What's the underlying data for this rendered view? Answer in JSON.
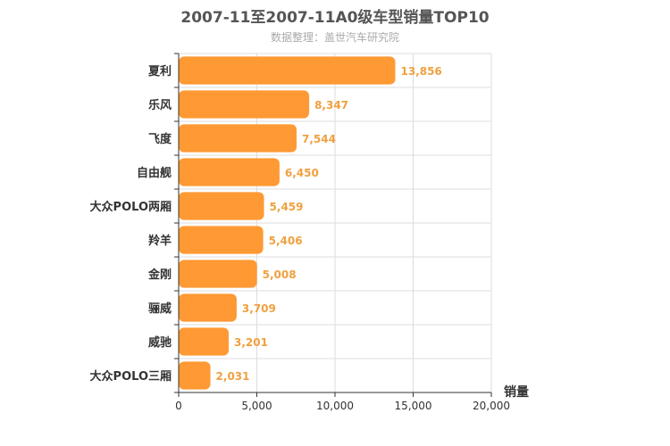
{
  "chart_data": {
    "type": "bar",
    "orientation": "horizontal",
    "title": "2007-11至2007-11A0级车型销量TOP10",
    "subtitle": "数据整理：盖世汽车研究院",
    "xlabel": "销量",
    "ylabel": "",
    "categories": [
      "夏利",
      "乐风",
      "飞度",
      "自由舰",
      "大众POLO两厢",
      "羚羊",
      "金刚",
      "骊威",
      "威驰",
      "大众POLO三厢"
    ],
    "values": [
      13856,
      8347,
      7544,
      6450,
      5459,
      5406,
      5008,
      3709,
      3201,
      2031
    ],
    "value_labels": [
      "13,856",
      "8,347",
      "7,544",
      "6,450",
      "5,459",
      "5,406",
      "5,008",
      "3,709",
      "3,201",
      "2,031"
    ],
    "xlim": [
      0,
      20000
    ],
    "xticks": [
      0,
      5000,
      10000,
      15000,
      20000
    ],
    "xtick_labels": [
      "0",
      "5,000",
      "10,000",
      "15,000",
      "20,000"
    ],
    "grid": true,
    "colors": {
      "bar": "#ff9933",
      "value_label": "#f0a040",
      "grid": "#dddddd",
      "axis": "#333333"
    }
  }
}
